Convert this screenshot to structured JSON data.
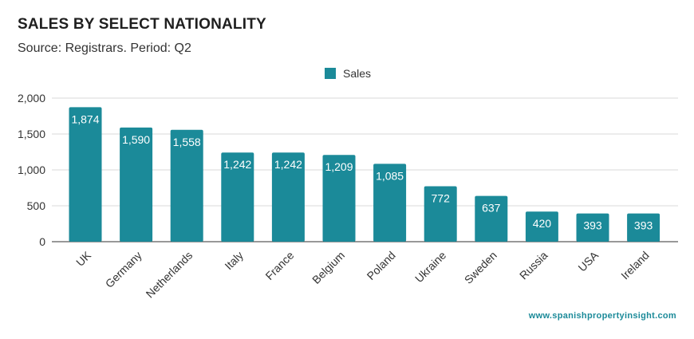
{
  "header": {
    "title": "SALES BY SELECT NATIONALITY",
    "subtitle": "Source: Registrars. Period: Q2"
  },
  "footer": {
    "source_url": "www.spanishpropertyinsight.com"
  },
  "colors": {
    "bar": "#1b8a99",
    "grid": "#d9d9d9",
    "accent_text": "#1b8a99"
  },
  "chart_data": {
    "type": "bar",
    "title": "SALES BY SELECT NATIONALITY",
    "subtitle": "Source: Registrars. Period: Q2",
    "categories": [
      "UK",
      "Germany",
      "Netherlands",
      "Italy",
      "France",
      "Belgium",
      "Poland",
      "Ukraine",
      "Sweden",
      "Russia",
      "USA",
      "Ireland"
    ],
    "series": [
      {
        "name": "Sales",
        "values": [
          1874,
          1590,
          1558,
          1242,
          1242,
          1209,
          1085,
          772,
          637,
          420,
          393,
          393
        ]
      }
    ],
    "data_labels": [
      "1,874",
      "1,590",
      "1,558",
      "1,242",
      "1,242",
      "1,209",
      "1,085",
      "772",
      "637",
      "420",
      "393",
      "393"
    ],
    "ylim": [
      0,
      2000
    ],
    "yticks": [
      0,
      500,
      1000,
      1500,
      2000
    ],
    "ytick_labels": [
      "0",
      "500",
      "1,000",
      "1,500",
      "2,000"
    ],
    "xlabel": "",
    "ylabel": "",
    "grid": true,
    "legend": "top-center"
  }
}
